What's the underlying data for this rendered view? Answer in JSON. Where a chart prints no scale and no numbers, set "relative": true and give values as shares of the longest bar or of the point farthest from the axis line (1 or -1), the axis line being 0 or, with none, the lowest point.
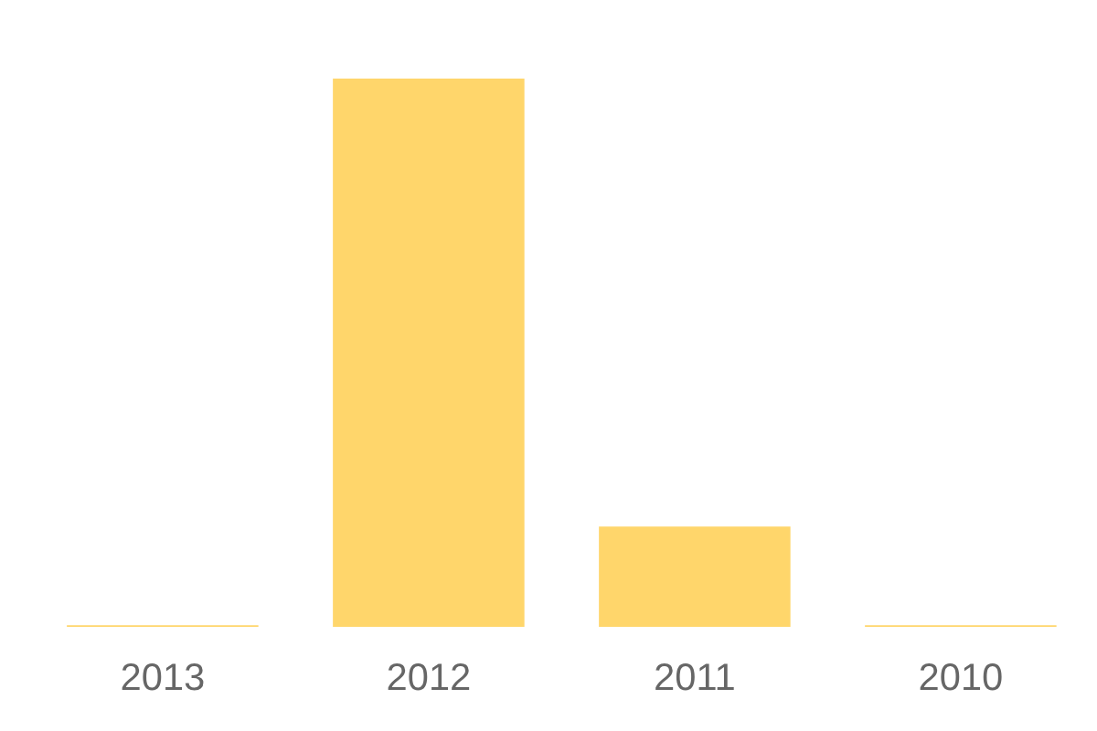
{
  "chart_data": {
    "type": "bar",
    "relative": true,
    "categories": [
      "2013",
      "2012",
      "2011",
      "2010"
    ],
    "values": [
      0.003,
      1,
      0.183,
      0.003
    ],
    "color": "#ffd66b",
    "grid": false,
    "legend": false
  }
}
